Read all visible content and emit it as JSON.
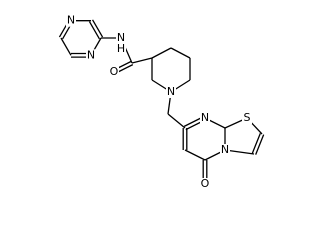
{
  "atoms": [
    {
      "label": "N"
    },
    {
      "label": "N"
    },
    {
      "label": "N"
    },
    {
      "label": "H"
    },
    {
      "label": "O"
    },
    {
      "label": "N"
    },
    {
      "label": "N"
    },
    {
      "label": "S"
    },
    {
      "label": "N"
    },
    {
      "label": "O"
    }
  ]
}
